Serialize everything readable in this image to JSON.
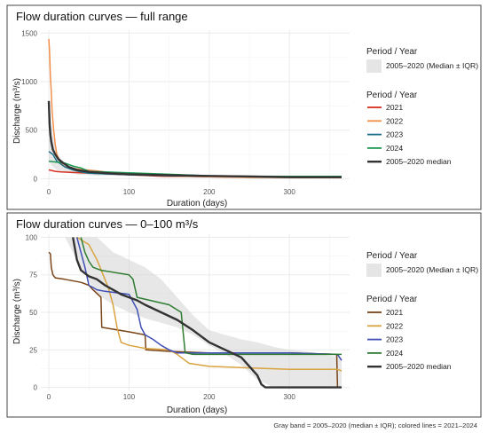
{
  "caption": "Gray band = 2005–2020 (median ± IQR); colored lines = 2021–2024",
  "colors": {
    "band": "#d3d3d3",
    "median": "#333333",
    "grid": "#ebebeb",
    "frame": "#444444"
  },
  "chart_data": [
    {
      "type": "line",
      "title": "Flow duration curves — full range",
      "xlabel": "Duration (days)",
      "ylabel": "Discharge (m³/s)",
      "xlim": [
        -10,
        375
      ],
      "ylim": [
        -70,
        1530
      ],
      "xticks": [
        0,
        100,
        200,
        300
      ],
      "yticks": [
        0,
        500,
        1000,
        1500
      ],
      "grid": true,
      "legend_position": "right",
      "legend": {
        "band_title": "Period / Year",
        "band_label": "2005–2020 (Median ± IQR)",
        "lines_title": "Period / Year"
      },
      "band": {
        "name": "2005–2020 (Median ± IQR)",
        "x": [
          0,
          5,
          10,
          20,
          40,
          60,
          100,
          150,
          200,
          250,
          300,
          365
        ],
        "low": [
          180,
          120,
          90,
          60,
          40,
          32,
          28,
          25,
          22,
          20,
          18,
          18
        ],
        "high": [
          820,
          450,
          250,
          160,
          110,
          80,
          60,
          45,
          38,
          33,
          30,
          28
        ]
      },
      "series": [
        {
          "name": "2021",
          "color": "#d7301f",
          "x": [
            0,
            3,
            8,
            15,
            40,
            70,
            100,
            140,
            180,
            200,
            250,
            300,
            365
          ],
          "y": [
            90,
            85,
            75,
            70,
            60,
            50,
            40,
            25,
            22,
            20,
            16,
            12,
            10
          ]
        },
        {
          "name": "2022",
          "color": "#f28e4b",
          "x": [
            0,
            1,
            2,
            3,
            4,
            6,
            8,
            10,
            14,
            18,
            25,
            40,
            60,
            100,
            150,
            200,
            250,
            365
          ],
          "y": [
            1440,
            1300,
            1050,
            900,
            700,
            500,
            350,
            250,
            180,
            130,
            110,
            95,
            80,
            40,
            28,
            20,
            12,
            12
          ]
        },
        {
          "name": "2023",
          "color": "#1b6f8a",
          "x": [
            0,
            5,
            10,
            20,
            30,
            40,
            50,
            100,
            150,
            200,
            250,
            300,
            365
          ],
          "y": [
            280,
            250,
            180,
            120,
            90,
            70,
            55,
            40,
            30,
            25,
            23,
            23,
            22
          ]
        },
        {
          "name": "2024",
          "color": "#1a9850",
          "x": [
            0,
            10,
            20,
            30,
            40,
            50,
            100,
            150,
            200,
            250,
            300,
            365
          ],
          "y": [
            180,
            170,
            160,
            130,
            110,
            75,
            60,
            45,
            30,
            25,
            24,
            24
          ]
        },
        {
          "name": "2005–2020 median",
          "color": "#333333",
          "x": [
            0,
            1,
            2,
            3,
            5,
            8,
            12,
            18,
            25,
            35,
            50,
            75,
            100,
            150,
            200,
            250,
            300,
            365
          ],
          "y": [
            800,
            560,
            450,
            380,
            300,
            250,
            200,
            160,
            120,
            90,
            70,
            55,
            45,
            35,
            28,
            22,
            15,
            15
          ]
        }
      ]
    },
    {
      "type": "line",
      "title": "Flow duration curves — 0–100 m³/s",
      "xlabel": "Duration (days)",
      "ylabel": "Discharge (m³/s)",
      "xlim": [
        -10,
        375
      ],
      "ylim": [
        -2,
        102
      ],
      "xticks": [
        0,
        100,
        200,
        300
      ],
      "yticks": [
        0,
        25,
        50,
        75,
        100
      ],
      "grid": true,
      "legend_position": "right",
      "legend": {
        "band_title": "Period / Year",
        "band_label": "2005–2020 (Median ± IQR)",
        "lines_title": "Period / Year"
      },
      "band": {
        "name": "2005–2020 (Median ± IQR)",
        "x": [
          0,
          20,
          40,
          60,
          80,
          100,
          120,
          140,
          160,
          180,
          200,
          220,
          240,
          260,
          280,
          300,
          320,
          340,
          365
        ],
        "low": [
          100,
          100,
          80,
          62,
          55,
          50,
          46,
          43,
          40,
          35,
          28,
          22,
          15,
          5,
          0,
          0,
          0,
          0,
          0
        ],
        "high": [
          100,
          100,
          100,
          100,
          90,
          85,
          80,
          72,
          60,
          48,
          38,
          35,
          32,
          30,
          27,
          25,
          24,
          22,
          20
        ]
      },
      "series": [
        {
          "name": "2021",
          "color": "#7a4419",
          "x": [
            0,
            2,
            3,
            5,
            8,
            20,
            40,
            50,
            55,
            65,
            66,
            100,
            120,
            121,
            150,
            200,
            300,
            359,
            360,
            365
          ],
          "y": [
            90,
            89,
            80,
            75,
            73,
            72,
            70,
            68,
            65,
            60,
            40,
            37,
            35,
            25,
            24,
            23,
            23,
            22,
            0,
            0
          ]
        },
        {
          "name": "2022",
          "color": "#d9a33f",
          "x": [
            35,
            50,
            60,
            70,
            75,
            80,
            85,
            90,
            100,
            120,
            150,
            160,
            170,
            175,
            200,
            250,
            300,
            360,
            365
          ],
          "y": [
            100,
            95,
            85,
            72,
            65,
            55,
            40,
            30,
            28,
            26,
            25,
            22,
            18,
            16,
            14,
            13,
            12,
            12,
            11
          ]
        },
        {
          "name": "2023",
          "color": "#3f4fb5",
          "x": [
            35,
            40,
            45,
            50,
            60,
            70,
            100,
            110,
            115,
            120,
            130,
            140,
            150,
            155,
            160,
            200,
            300,
            360,
            365
          ],
          "y": [
            100,
            90,
            80,
            68,
            65,
            64,
            62,
            52,
            40,
            35,
            32,
            28,
            25,
            24,
            23,
            23,
            23,
            22,
            18
          ]
        },
        {
          "name": "2024",
          "color": "#2e7d32",
          "x": [
            40,
            45,
            50,
            55,
            60,
            65,
            100,
            105,
            110,
            150,
            165,
            170,
            180,
            200,
            300,
            365
          ],
          "y": [
            100,
            90,
            84,
            80,
            79,
            78,
            75,
            72,
            60,
            55,
            50,
            23,
            22,
            22,
            22,
            22
          ]
        },
        {
          "name": "2005–2020 median",
          "color": "#333333",
          "x": [
            30,
            35,
            40,
            50,
            60,
            70,
            80,
            90,
            100,
            110,
            120,
            140,
            160,
            180,
            200,
            220,
            240,
            260,
            265,
            270,
            300,
            365
          ],
          "y": [
            100,
            85,
            78,
            74,
            72,
            68,
            65,
            62,
            60,
            58,
            55,
            50,
            45,
            38,
            30,
            25,
            20,
            8,
            2,
            0,
            0,
            0
          ]
        }
      ]
    }
  ]
}
